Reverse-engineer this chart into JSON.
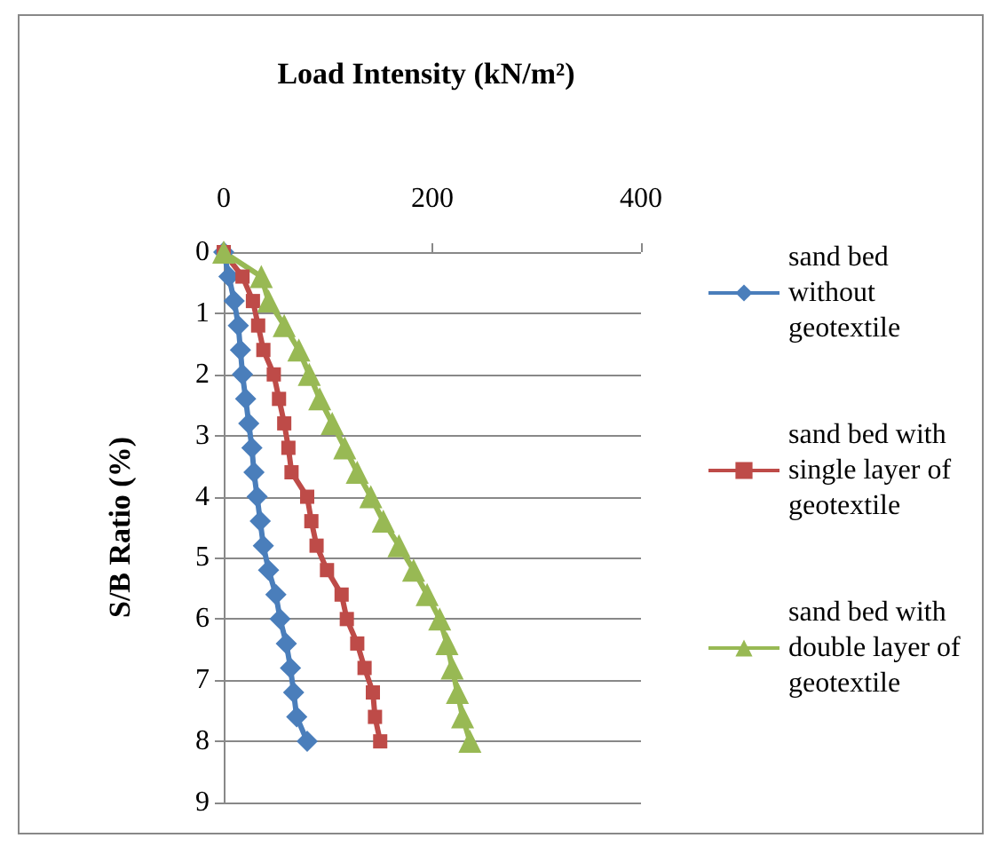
{
  "chart_data": {
    "type": "line",
    "xlabel": "Load Intensity (kN/m²)",
    "ylabel": "S/B Ratio (%)",
    "xlim": [
      0,
      400
    ],
    "xticks": [
      0,
      200,
      400
    ],
    "ylim": [
      9,
      0
    ],
    "yticks": [
      0,
      1,
      2,
      3,
      4,
      5,
      6,
      7,
      8,
      9
    ],
    "grid": "y",
    "legend": "right",
    "line_style": "solid",
    "series": [
      {
        "name": "sand bed without geotextile",
        "color": "#4a7ebb",
        "marker": "diamond",
        "x": [
          0,
          5,
          10,
          14,
          16,
          18,
          21,
          24,
          27,
          29,
          32,
          35,
          38,
          43,
          50,
          54,
          60,
          64,
          67,
          70,
          80
        ],
        "values": [
          0,
          0.4,
          0.8,
          1.2,
          1.6,
          2.0,
          2.4,
          2.8,
          3.2,
          3.6,
          4.0,
          4.4,
          4.8,
          5.2,
          5.6,
          6.0,
          6.4,
          6.8,
          7.2,
          7.6,
          8.0
        ]
      },
      {
        "name": "sand bed with single layer of geotextile",
        "color": "#be4b48",
        "marker": "square",
        "x": [
          0,
          18,
          28,
          33,
          38,
          48,
          53,
          58,
          62,
          65,
          80,
          84,
          89,
          99,
          113,
          118,
          128,
          135,
          143,
          145,
          150
        ],
        "values": [
          0,
          0.4,
          0.8,
          1.2,
          1.6,
          2.0,
          2.4,
          2.8,
          3.2,
          3.6,
          4.0,
          4.4,
          4.8,
          5.2,
          5.6,
          6.0,
          6.4,
          6.8,
          7.2,
          7.6,
          8.0
        ]
      },
      {
        "name": "sand bed with double layer of geotextile",
        "color": "#98b954",
        "marker": "triangle",
        "x": [
          0,
          36,
          43,
          58,
          72,
          82,
          92,
          104,
          116,
          128,
          141,
          153,
          168,
          182,
          195,
          207,
          214,
          219,
          224,
          229,
          236
        ],
        "values": [
          0,
          0.4,
          0.8,
          1.2,
          1.6,
          2.0,
          2.4,
          2.8,
          3.2,
          3.6,
          4.0,
          4.4,
          4.8,
          5.2,
          5.6,
          6.0,
          6.4,
          6.8,
          7.2,
          7.6,
          8.0
        ]
      }
    ]
  }
}
